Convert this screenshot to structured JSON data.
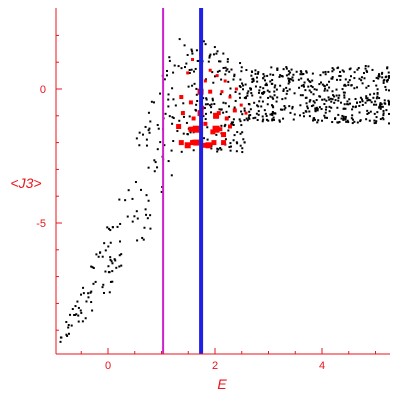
{
  "chart_data": {
    "type": "scatter",
    "title": "",
    "xlabel": "E",
    "ylabel": "<J3>",
    "xlim": [
      -0.9,
      5.3
    ],
    "ylim": [
      -10,
      3
    ],
    "x_ticks": [
      0,
      2,
      4
    ],
    "y_ticks": [
      0,
      -5
    ],
    "grid": false,
    "axis_color": "#e8141b",
    "vertical_lines": [
      {
        "x": 1.03,
        "color": "#cc22cc"
      },
      {
        "x": 1.74,
        "color": "#1f1fe6"
      }
    ],
    "series": [
      {
        "style": "black-dots",
        "color": "#000000",
        "regions": [
          {
            "x_from": -0.9,
            "x_to": 0.5,
            "y_top": [
              -9.2,
              -2.8
            ],
            "y_bottom": [
              -9.6,
              -6.6
            ],
            "count": 85
          },
          {
            "x_from": 0.5,
            "x_to": 1.4,
            "y_top": [
              -2.0,
              2.5
            ],
            "y_bottom": [
              -6.6,
              -2.4
            ],
            "count": 75
          },
          {
            "x_from": 1.4,
            "x_to": 2.6,
            "y_top": [
              2.4,
              0.8
            ],
            "y_bottom": [
              -2.3,
              -2.4
            ],
            "count": 180
          },
          {
            "x_from": 2.6,
            "x_to": 5.3,
            "y_top": [
              0.8,
              0.9
            ],
            "y_bottom": [
              -1.2,
              -1.3
            ],
            "count": 460
          }
        ]
      },
      {
        "style": "red-markers",
        "color": "#ff0000",
        "points": [
          [
            1.58,
            1.1,
            1
          ],
          [
            1.73,
            1.3,
            1
          ],
          [
            1.91,
            0.7,
            1
          ],
          [
            2.04,
            0.5,
            1
          ],
          [
            2.19,
            0.3,
            1
          ],
          [
            2.4,
            0.0,
            1
          ],
          [
            1.49,
            0.6,
            1
          ],
          [
            1.82,
            0.3,
            1
          ],
          [
            2.13,
            -0.1,
            1
          ],
          [
            2.28,
            -0.3,
            1
          ],
          [
            2.49,
            -0.6,
            1
          ],
          [
            2.58,
            -0.9,
            1
          ],
          [
            1.37,
            -0.3,
            2
          ],
          [
            1.55,
            -0.5,
            2
          ],
          [
            1.76,
            -0.7,
            2
          ],
          [
            1.91,
            -0.1,
            2
          ],
          [
            2.07,
            -0.9,
            2
          ],
          [
            2.22,
            -1.1,
            2
          ],
          [
            2.37,
            -0.8,
            2
          ],
          [
            1.4,
            -0.9,
            2
          ],
          [
            1.6,
            -1.1,
            2
          ],
          [
            1.82,
            -1.3,
            2
          ],
          [
            2.1,
            -1.5,
            2
          ],
          [
            2.28,
            -1.4,
            2
          ],
          [
            1.32,
            -1.4,
            3
          ],
          [
            1.55,
            -1.5,
            3
          ],
          [
            1.96,
            -1.6,
            3
          ],
          [
            2.16,
            -1.7,
            3
          ],
          [
            1.37,
            -2.0,
            3
          ],
          [
            1.58,
            -2.0,
            3
          ],
          [
            1.8,
            -2.1,
            3
          ],
          [
            1.98,
            -2.0,
            3
          ],
          [
            2.16,
            -2.0,
            3
          ],
          [
            1.49,
            -2.1,
            4
          ],
          [
            1.65,
            -2.0,
            4
          ],
          [
            1.88,
            -2.1,
            4
          ],
          [
            1.73,
            -0.1,
            4
          ],
          [
            1.73,
            -0.9,
            4
          ],
          [
            1.65,
            -1.5,
            5
          ],
          [
            2.02,
            -1.5,
            5
          ],
          [
            2.02,
            -1.0,
            4
          ]
        ]
      }
    ]
  }
}
